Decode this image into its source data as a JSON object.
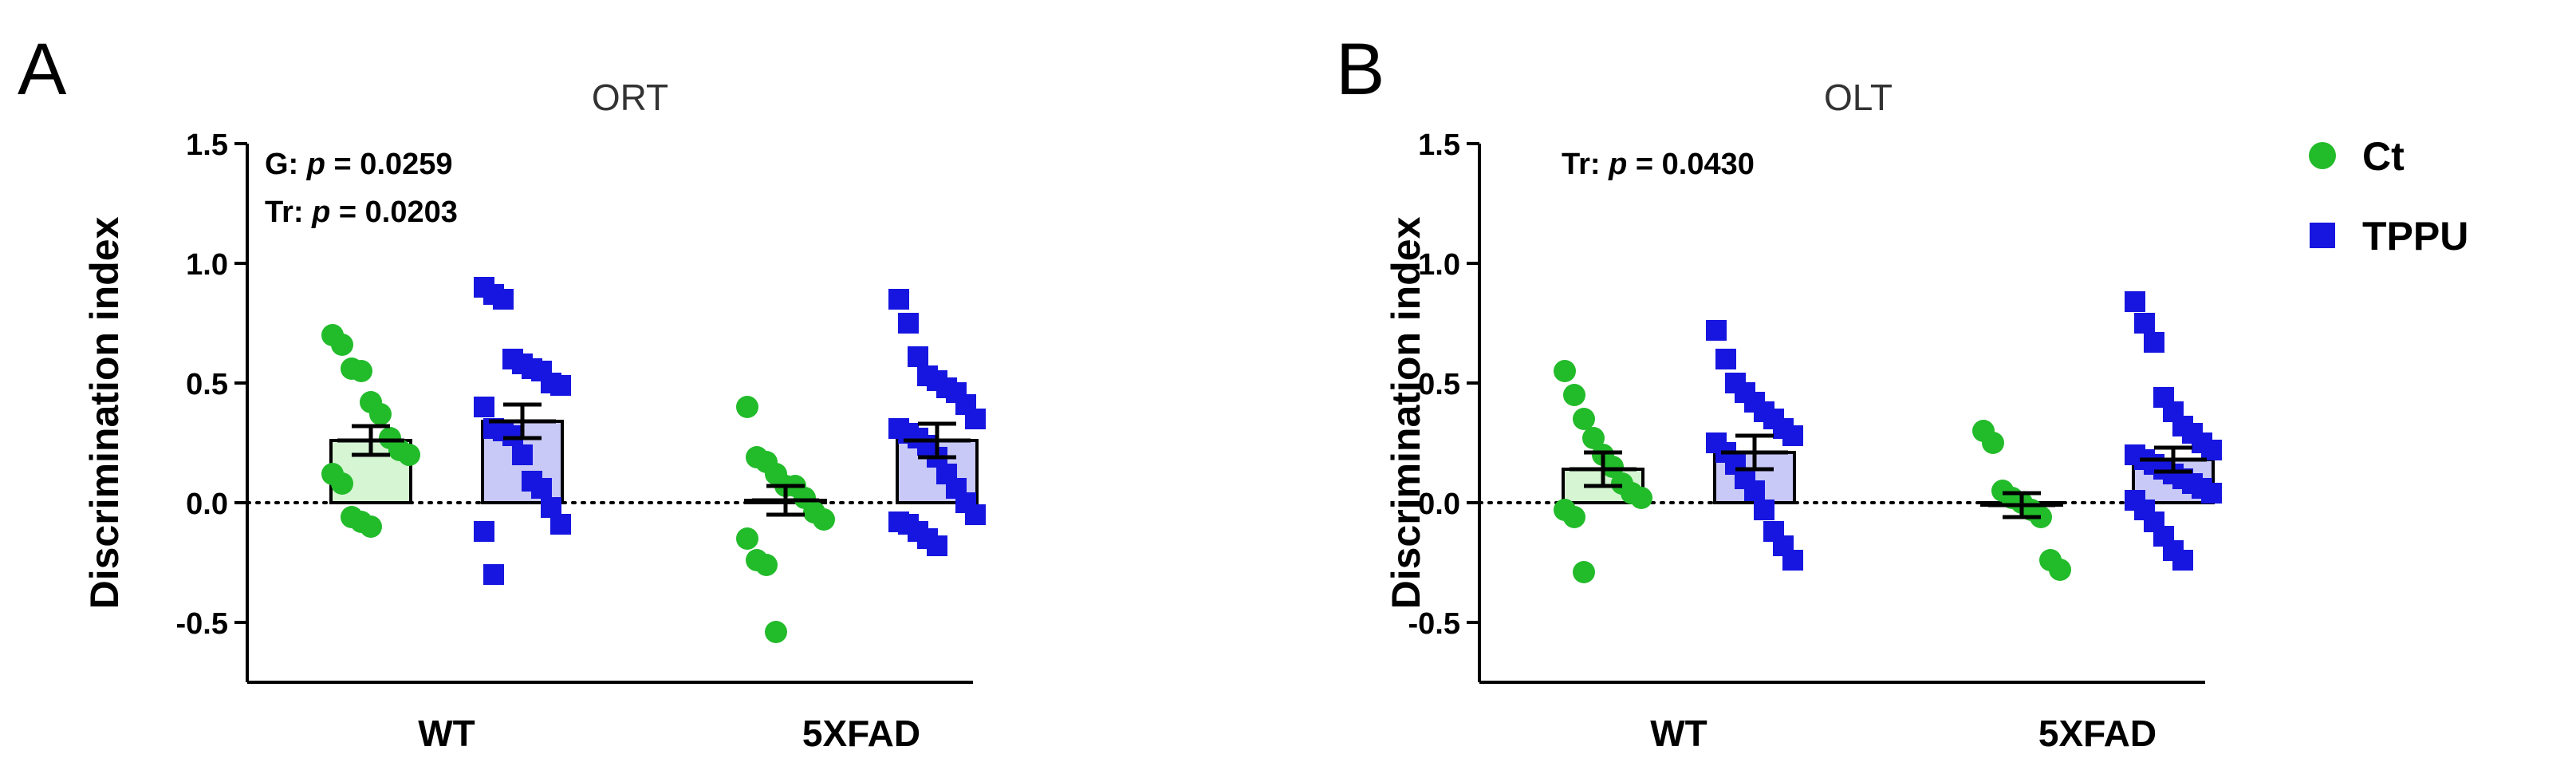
{
  "colors": {
    "ct": "#22bb2a",
    "ct_fill": "#d6f5d3",
    "tppu": "#1616e0",
    "tppu_fill": "#c9c9f7",
    "axis": "#000000"
  },
  "legend": {
    "items": [
      {
        "label": "Ct",
        "icon": "green-circle-marker"
      },
      {
        "label": "TPPU",
        "icon": "blue-square-marker"
      }
    ]
  },
  "chart_data": [
    {
      "type": "bar",
      "panel_letter": "A",
      "title": "ORT",
      "ylabel": "Discrimination index",
      "xlabel": "",
      "ylim": [
        -0.75,
        1.5
      ],
      "yticks": [
        -0.5,
        0.0,
        0.5,
        1.0,
        1.5
      ],
      "ytick_labels": [
        "-0.5",
        "0.0",
        "0.5",
        "1.0",
        "1.5"
      ],
      "categories": [
        "WT",
        "5XFAD"
      ],
      "reference_line": 0.0,
      "annotations": [
        {
          "prefix": "G: ",
          "p": "p",
          "value": " = 0.0259"
        },
        {
          "prefix": "Tr: ",
          "p": "p",
          "value": " = 0.0203"
        }
      ],
      "series": [
        {
          "name": "Ct",
          "values": [
            0.26,
            0.01
          ],
          "sem": [
            0.06,
            0.06
          ],
          "points": [
            [
              0.7,
              0.66,
              0.56,
              0.55,
              0.42,
              0.37,
              0.27,
              0.22,
              0.2,
              0.12,
              0.08,
              -0.06,
              -0.08,
              -0.1
            ],
            [
              0.4,
              0.19,
              0.17,
              0.12,
              0.07,
              0.07,
              0.02,
              -0.04,
              -0.07,
              -0.15,
              -0.24,
              -0.26,
              -0.54
            ]
          ]
        },
        {
          "name": "TPPU",
          "values": [
            0.34,
            0.26
          ],
          "sem": [
            0.07,
            0.07
          ],
          "points": [
            [
              0.9,
              0.87,
              0.85,
              0.6,
              0.58,
              0.56,
              0.55,
              0.5,
              0.49,
              0.4,
              0.31,
              0.3,
              0.28,
              0.2,
              0.09,
              0.06,
              -0.02,
              -0.09,
              -0.12,
              -0.3
            ],
            [
              0.85,
              0.75,
              0.61,
              0.53,
              0.51,
              0.48,
              0.46,
              0.41,
              0.35,
              0.31,
              0.29,
              0.27,
              0.24,
              0.19,
              0.12,
              0.06,
              0.0,
              -0.05,
              -0.08,
              -0.09,
              -0.12,
              -0.15,
              -0.18
            ]
          ]
        }
      ]
    },
    {
      "type": "bar",
      "panel_letter": "B",
      "title": "OLT",
      "ylabel": "Discrimination index",
      "xlabel": "",
      "ylim": [
        -0.75,
        1.5
      ],
      "yticks": [
        -0.5,
        0.0,
        0.5,
        1.0,
        1.5
      ],
      "ytick_labels": [
        "-0.5",
        "0.0",
        "0.5",
        "1.0",
        "1.5"
      ],
      "categories": [
        "WT",
        "5XFAD"
      ],
      "reference_line": 0.0,
      "annotations": [
        {
          "prefix": "Tr: ",
          "p": "p",
          "value": " = 0.0430"
        }
      ],
      "series": [
        {
          "name": "Ct",
          "values": [
            0.14,
            -0.01
          ],
          "sem": [
            0.07,
            0.05
          ],
          "points": [
            [
              0.55,
              0.45,
              0.35,
              0.27,
              0.2,
              0.15,
              0.08,
              0.04,
              0.02,
              -0.03,
              -0.06,
              -0.29
            ],
            [
              0.3,
              0.25,
              0.05,
              0.02,
              0.0,
              -0.03,
              -0.06,
              -0.24,
              -0.28
            ]
          ]
        },
        {
          "name": "TPPU",
          "values": [
            0.21,
            0.18
          ],
          "sem": [
            0.07,
            0.05
          ],
          "points": [
            [
              0.72,
              0.6,
              0.5,
              0.46,
              0.42,
              0.38,
              0.35,
              0.31,
              0.28,
              0.25,
              0.21,
              0.16,
              0.1,
              0.05,
              -0.03,
              -0.12,
              -0.18,
              -0.24
            ],
            [
              0.84,
              0.75,
              0.67,
              0.44,
              0.38,
              0.32,
              0.29,
              0.25,
              0.22,
              0.2,
              0.18,
              0.16,
              0.14,
              0.12,
              0.1,
              0.08,
              0.06,
              0.04,
              0.01,
              -0.03,
              -0.08,
              -0.14,
              -0.2,
              -0.24
            ]
          ]
        }
      ]
    }
  ]
}
